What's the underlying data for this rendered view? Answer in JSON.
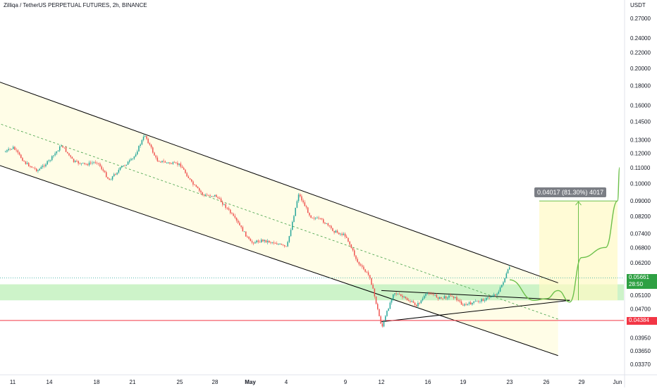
{
  "header": {
    "title": "Zilliqa / TetherUS PERPETUAL FUTURES, 2h, BINANCE",
    "unit": "USDT"
  },
  "measure": {
    "label": "0.04017 (81.30%) 4017"
  },
  "badges": {
    "current_price": "0.05661",
    "countdown": "28:50",
    "support_price": "0.04384"
  },
  "colors": {
    "up": "#26a69a",
    "down": "#ef5350",
    "channel_fill": "#fffde7",
    "zone_fill": "#c8f2c3",
    "projection": "#6cc04a",
    "support_line": "#f23645",
    "trend_line": "#000000"
  },
  "chart_data": {
    "type": "candlestick",
    "title": "Zilliqa / TetherUS PERPETUAL FUTURES, 2h, BINANCE",
    "ylabel": "USDT",
    "y_scale": "log",
    "ylim": [
      0.0335,
      0.295
    ],
    "y_ticks": [
      0.27,
      0.24,
      0.22,
      0.2,
      0.18,
      0.16,
      0.145,
      0.13,
      0.12,
      0.11,
      0.1,
      0.09,
      0.082,
      0.074,
      0.068,
      0.062,
      0.051,
      0.047,
      0.0395,
      0.0365,
      0.0337
    ],
    "y_tick_labels": [
      "0.27000",
      "0.24000",
      "0.22000",
      "0.20000",
      "0.18000",
      "0.16000",
      "0.14500",
      "0.13000",
      "0.12000",
      "0.11000",
      "0.10000",
      "0.09000",
      "0.08200",
      "0.07400",
      "0.06800",
      "0.06200",
      "0.05100",
      "0.04700",
      "0.03950",
      "0.03650",
      "0.03370"
    ],
    "x_tick_labels": [
      "11",
      "14",
      "18",
      "21",
      "25",
      "28",
      "May",
      "4",
      "9",
      "12",
      "16",
      "19",
      "23",
      "26",
      "29",
      "Jun"
    ],
    "price_path": [
      {
        "date": "Apr 9",
        "price": 0.121
      },
      {
        "date": "Apr 11",
        "price": 0.124
      },
      {
        "date": "Apr 12",
        "price": 0.113
      },
      {
        "date": "Apr 13",
        "price": 0.108
      },
      {
        "date": "Apr 14",
        "price": 0.115
      },
      {
        "date": "Apr 15",
        "price": 0.126
      },
      {
        "date": "Apr 16",
        "price": 0.114
      },
      {
        "date": "Apr 17",
        "price": 0.112
      },
      {
        "date": "Apr 18",
        "price": 0.114
      },
      {
        "date": "Apr 19",
        "price": 0.102
      },
      {
        "date": "Apr 20",
        "price": 0.11
      },
      {
        "date": "Apr 21",
        "price": 0.116
      },
      {
        "date": "Apr 22",
        "price": 0.134
      },
      {
        "date": "Apr 23",
        "price": 0.115
      },
      {
        "date": "Apr 24",
        "price": 0.113
      },
      {
        "date": "Apr 25",
        "price": 0.112
      },
      {
        "date": "Apr 26",
        "price": 0.1
      },
      {
        "date": "Apr 27",
        "price": 0.093
      },
      {
        "date": "Apr 28",
        "price": 0.093
      },
      {
        "date": "Apr 29",
        "price": 0.086
      },
      {
        "date": "Apr 30",
        "price": 0.078
      },
      {
        "date": "May 1",
        "price": 0.07
      },
      {
        "date": "May 2",
        "price": 0.071
      },
      {
        "date": "May 3",
        "price": 0.07
      },
      {
        "date": "May 4",
        "price": 0.068
      },
      {
        "date": "May 5",
        "price": 0.094
      },
      {
        "date": "May 6",
        "price": 0.082
      },
      {
        "date": "May 7",
        "price": 0.08
      },
      {
        "date": "May 8",
        "price": 0.075
      },
      {
        "date": "May 9",
        "price": 0.073
      },
      {
        "date": "May 10",
        "price": 0.062
      },
      {
        "date": "May 11",
        "price": 0.057
      },
      {
        "date": "May 12",
        "price": 0.042
      },
      {
        "date": "May 13",
        "price": 0.052
      },
      {
        "date": "May 14",
        "price": 0.05
      },
      {
        "date": "May 15",
        "price": 0.048
      },
      {
        "date": "May 16",
        "price": 0.052
      },
      {
        "date": "May 17",
        "price": 0.05
      },
      {
        "date": "May 18",
        "price": 0.051
      },
      {
        "date": "May 19",
        "price": 0.048
      },
      {
        "date": "May 20",
        "price": 0.049
      },
      {
        "date": "May 21",
        "price": 0.05
      },
      {
        "date": "May 22",
        "price": 0.052
      },
      {
        "date": "May 23",
        "price": 0.061
      },
      {
        "date": "May 23",
        "price": 0.057
      }
    ],
    "projection_path": [
      {
        "date": "May 23",
        "price": 0.056
      },
      {
        "date": "May 25",
        "price": 0.0495
      },
      {
        "date": "May 26",
        "price": 0.05
      },
      {
        "date": "May 27",
        "price": 0.0525
      },
      {
        "date": "May 28",
        "price": 0.049
      },
      {
        "date": "May 29",
        "price": 0.064
      },
      {
        "date": "May 31",
        "price": 0.068
      },
      {
        "date": "Jun 1",
        "price": 0.09
      },
      {
        "date": "Jun 1",
        "price": 0.11
      }
    ],
    "channel": {
      "upper": [
        {
          "date": "Apr 7",
          "price": 0.185
        },
        {
          "date": "May 27",
          "price": 0.055
        }
      ],
      "lower": [
        {
          "date": "Apr 7",
          "price": 0.112
        },
        {
          "date": "May 27",
          "price": 0.0355
        }
      ]
    },
    "triangle": {
      "upper": [
        {
          "date": "May 12",
          "price": 0.0525
        },
        {
          "date": "May 28",
          "price": 0.0495
        }
      ],
      "lower": [
        {
          "date": "May 12",
          "price": 0.0435
        },
        {
          "date": "May 28",
          "price": 0.0495
        }
      ]
    },
    "zone": [
      0.0495,
      0.0545
    ],
    "support_level": 0.04384,
    "current_price": 0.05661,
    "measure": {
      "from": 0.0495,
      "to": 0.09,
      "change": 0.04017,
      "percent": 81.3,
      "ticks": 4017
    }
  }
}
